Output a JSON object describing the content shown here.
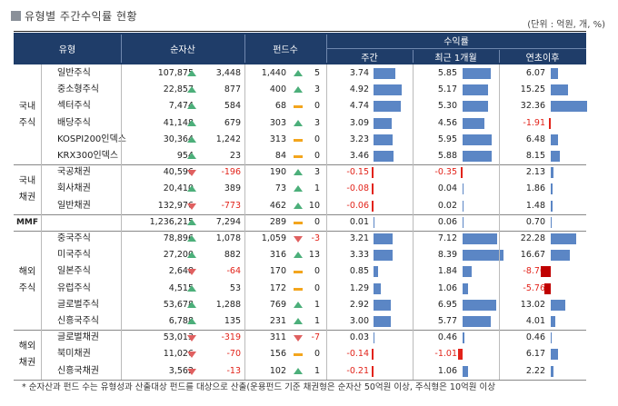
{
  "title": "유형별 주간수익률 현황",
  "unit": "(단위 : 억원, 개, %)",
  "headers": {
    "type": "유형",
    "net_assets": "순자산",
    "fund_count": "펀드수",
    "returns": "수익률",
    "weekly": "주간",
    "one_month": "최근 1개월",
    "ytd": "연초이후"
  },
  "groups": [
    {
      "label_lines": [
        "국내",
        "주식"
      ],
      "rows": [
        {
          "name": "일반주식",
          "assets": "107,875",
          "asset_chg": "3,448",
          "asset_dir": "up",
          "funds": "1,440",
          "fund_chg": "5",
          "fund_dir": "up",
          "w": "3.74",
          "m": "5.85",
          "y": "6.07"
        },
        {
          "name": "중소형주식",
          "assets": "22,857",
          "asset_chg": "877",
          "asset_dir": "up",
          "funds": "400",
          "fund_chg": "3",
          "fund_dir": "up",
          "w": "4.92",
          "m": "5.17",
          "y": "15.25"
        },
        {
          "name": "섹터주식",
          "assets": "7,474",
          "asset_chg": "584",
          "asset_dir": "up",
          "funds": "68",
          "fund_chg": "0",
          "fund_dir": "flat",
          "w": "4.74",
          "m": "5.30",
          "y": "32.36"
        },
        {
          "name": "배당주식",
          "assets": "41,148",
          "asset_chg": "679",
          "asset_dir": "up",
          "funds": "303",
          "fund_chg": "3",
          "fund_dir": "up",
          "w": "3.09",
          "m": "4.56",
          "y": "-1.91"
        },
        {
          "name": "KOSPI200인덱스",
          "assets": "30,364",
          "asset_chg": "1,242",
          "asset_dir": "up",
          "funds": "313",
          "fund_chg": "0",
          "fund_dir": "flat",
          "w": "3.23",
          "m": "5.95",
          "y": "6.48"
        },
        {
          "name": "KRX300인덱스",
          "assets": "954",
          "asset_chg": "23",
          "asset_dir": "up",
          "funds": "84",
          "fund_chg": "0",
          "fund_dir": "flat",
          "w": "3.46",
          "m": "5.88",
          "y": "8.15"
        }
      ]
    },
    {
      "label_lines": [
        "국내",
        "채권"
      ],
      "rows": [
        {
          "name": "국공채권",
          "assets": "40,596",
          "asset_chg": "-196",
          "asset_dir": "down",
          "funds": "190",
          "fund_chg": "3",
          "fund_dir": "up",
          "w": "-0.15",
          "m": "-0.35",
          "y": "2.13"
        },
        {
          "name": "회사채권",
          "assets": "20,410",
          "asset_chg": "389",
          "asset_dir": "up",
          "funds": "73",
          "fund_chg": "1",
          "fund_dir": "up",
          "w": "-0.08",
          "m": "0.04",
          "y": "1.86"
        },
        {
          "name": "일반채권",
          "assets": "132,976",
          "asset_chg": "-773",
          "asset_dir": "down",
          "funds": "462",
          "fund_chg": "10",
          "fund_dir": "up",
          "w": "-0.06",
          "m": "0.02",
          "y": "1.48"
        }
      ]
    },
    {
      "label_lines": [
        "MMF"
      ],
      "rows": [
        {
          "name": "",
          "assets": "1,236,215",
          "asset_chg": "7,294",
          "asset_dir": "up",
          "funds": "289",
          "fund_chg": "0",
          "fund_dir": "flat",
          "w": "0.01",
          "m": "0.06",
          "y": "0.70"
        }
      ]
    },
    {
      "label_lines": [
        "해외",
        "주식"
      ],
      "rows": [
        {
          "name": "중국주식",
          "assets": "78,896",
          "asset_chg": "1,078",
          "asset_dir": "up",
          "funds": "1,059",
          "fund_chg": "-3",
          "fund_dir": "down",
          "w": "3.21",
          "m": "7.12",
          "y": "22.28"
        },
        {
          "name": "미국주식",
          "assets": "27,200",
          "asset_chg": "882",
          "asset_dir": "up",
          "funds": "316",
          "fund_chg": "13",
          "fund_dir": "up",
          "w": "3.33",
          "m": "8.39",
          "y": "16.67"
        },
        {
          "name": "일본주식",
          "assets": "2,648",
          "asset_chg": "-64",
          "asset_dir": "down",
          "funds": "170",
          "fund_chg": "0",
          "fund_dir": "flat",
          "w": "0.85",
          "m": "1.84",
          "y": "-8.76"
        },
        {
          "name": "유럽주식",
          "assets": "4,515",
          "asset_chg": "53",
          "asset_dir": "up",
          "funds": "172",
          "fund_chg": "0",
          "fund_dir": "flat",
          "w": "1.29",
          "m": "1.06",
          "y": "-5.76"
        },
        {
          "name": "글로벌주식",
          "assets": "53,678",
          "asset_chg": "1,288",
          "asset_dir": "up",
          "funds": "769",
          "fund_chg": "1",
          "fund_dir": "up",
          "w": "2.92",
          "m": "6.95",
          "y": "13.02"
        },
        {
          "name": "신흥국주식",
          "assets": "6,788",
          "asset_chg": "135",
          "asset_dir": "up",
          "funds": "231",
          "fund_chg": "1",
          "fund_dir": "up",
          "w": "3.00",
          "m": "5.77",
          "y": "4.01"
        }
      ]
    },
    {
      "label_lines": [
        "해외",
        "채권"
      ],
      "rows": [
        {
          "name": "글로벌채권",
          "assets": "53,013",
          "asset_chg": "-319",
          "asset_dir": "down",
          "funds": "311",
          "fund_chg": "-7",
          "fund_dir": "down",
          "w": "0.03",
          "m": "0.46",
          "y": "0.46"
        },
        {
          "name": "북미채권",
          "assets": "11,026",
          "asset_chg": "-70",
          "asset_dir": "down",
          "funds": "156",
          "fund_chg": "0",
          "fund_dir": "flat",
          "w": "-0.14",
          "m": "-1.01",
          "y": "6.17"
        },
        {
          "name": "신흥국채권",
          "assets": "3,562",
          "asset_chg": "-13",
          "asset_dir": "down",
          "funds": "102",
          "fund_chg": "1",
          "fund_dir": "up",
          "w": "-0.21",
          "m": "1.06",
          "y": "2.22"
        }
      ]
    }
  ],
  "footnote": "* 순자산과 펀드 수는 유형성과 산출대상 펀드를 대상으로 산출(운용펀드 기준 채권형은 순자산 50억원 이상, 주식형은 10억원 이상",
  "colors": {
    "header": "#1f3d69",
    "up": "#4caf7a",
    "down": "#e06060",
    "flat": "#f3a51d",
    "bar_pos": "#5b86c5",
    "bar_neg": "#e2231a"
  }
}
